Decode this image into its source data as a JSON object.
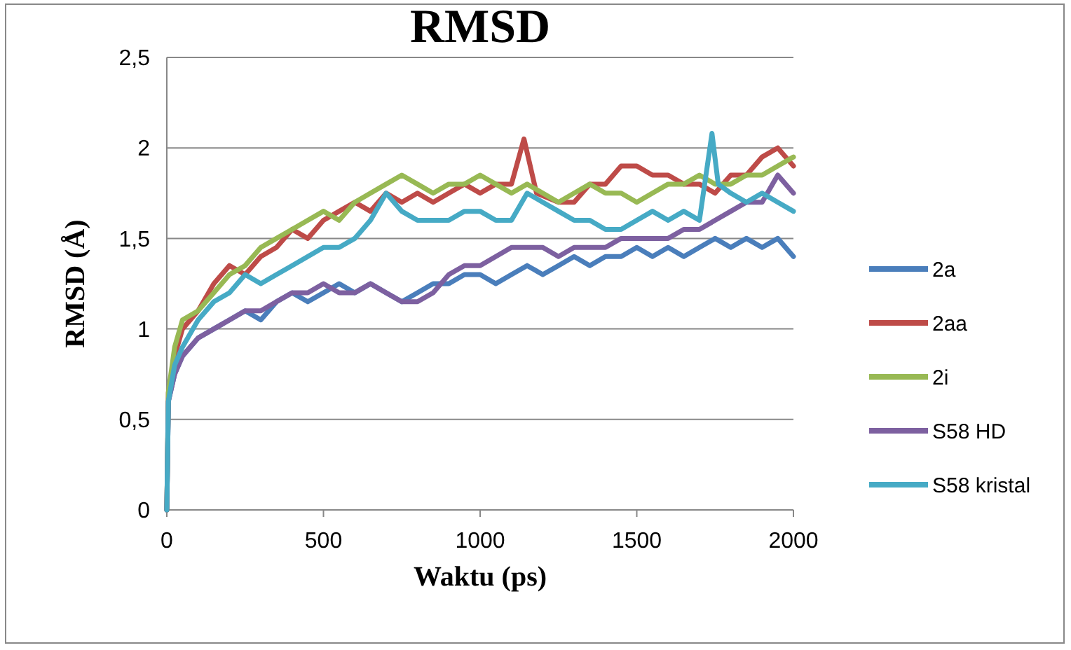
{
  "chart_data": {
    "type": "line",
    "title": "RMSD",
    "xlabel": "Waktu (ps)",
    "ylabel": "RMSD (Å)",
    "xlim": [
      0,
      2000
    ],
    "ylim": [
      0,
      2.5
    ],
    "xticks": [
      0,
      500,
      1000,
      1500,
      2000
    ],
    "yticks": [
      0,
      {
        "value": 0.5,
        "label": "0,5"
      },
      1,
      {
        "value": 1.5,
        "label": "1,5"
      },
      2,
      {
        "value": 2.5,
        "label": "2,5"
      }
    ],
    "grid": "y",
    "legend": "right",
    "marker": "none",
    "series": [
      {
        "name": "2a",
        "color": "#4a7ebb",
        "x": [
          0,
          5,
          25,
          50,
          100,
          150,
          200,
          250,
          300,
          350,
          400,
          450,
          500,
          550,
          600,
          650,
          700,
          750,
          800,
          850,
          900,
          950,
          1000,
          1050,
          1100,
          1150,
          1200,
          1250,
          1300,
          1350,
          1400,
          1450,
          1500,
          1550,
          1600,
          1650,
          1700,
          1750,
          1800,
          1850,
          1900,
          1950,
          2000
        ],
        "values": [
          0,
          0.6,
          0.75,
          0.85,
          0.95,
          1.0,
          1.05,
          1.1,
          1.05,
          1.15,
          1.2,
          1.15,
          1.2,
          1.25,
          1.2,
          1.25,
          1.2,
          1.15,
          1.2,
          1.25,
          1.25,
          1.3,
          1.3,
          1.25,
          1.3,
          1.35,
          1.3,
          1.35,
          1.4,
          1.35,
          1.4,
          1.4,
          1.45,
          1.4,
          1.45,
          1.4,
          1.45,
          1.5,
          1.45,
          1.5,
          1.45,
          1.5,
          1.4
        ]
      },
      {
        "name": "2aa",
        "color": "#be4b48",
        "x": [
          0,
          5,
          25,
          50,
          100,
          150,
          200,
          250,
          300,
          350,
          400,
          450,
          500,
          550,
          600,
          650,
          700,
          750,
          800,
          850,
          900,
          950,
          1000,
          1050,
          1100,
          1140,
          1180,
          1250,
          1300,
          1350,
          1400,
          1450,
          1500,
          1550,
          1600,
          1650,
          1700,
          1750,
          1800,
          1850,
          1900,
          1950,
          2000
        ],
        "values": [
          0,
          0.65,
          0.85,
          1.0,
          1.1,
          1.25,
          1.35,
          1.3,
          1.4,
          1.45,
          1.55,
          1.5,
          1.6,
          1.65,
          1.7,
          1.65,
          1.75,
          1.7,
          1.75,
          1.7,
          1.75,
          1.8,
          1.75,
          1.8,
          1.8,
          2.05,
          1.75,
          1.7,
          1.7,
          1.8,
          1.8,
          1.9,
          1.9,
          1.85,
          1.85,
          1.8,
          1.8,
          1.75,
          1.85,
          1.85,
          1.95,
          2.0,
          1.9
        ]
      },
      {
        "name": "2i",
        "color": "#98b954",
        "x": [
          0,
          5,
          25,
          50,
          100,
          150,
          200,
          250,
          300,
          350,
          400,
          450,
          500,
          550,
          600,
          650,
          700,
          750,
          800,
          850,
          900,
          950,
          1000,
          1050,
          1100,
          1150,
          1200,
          1250,
          1300,
          1350,
          1400,
          1450,
          1500,
          1550,
          1600,
          1650,
          1700,
          1750,
          1800,
          1850,
          1900,
          1950,
          2000
        ],
        "values": [
          0,
          0.65,
          0.9,
          1.05,
          1.1,
          1.2,
          1.3,
          1.35,
          1.45,
          1.5,
          1.55,
          1.6,
          1.65,
          1.6,
          1.7,
          1.75,
          1.8,
          1.85,
          1.8,
          1.75,
          1.8,
          1.8,
          1.85,
          1.8,
          1.75,
          1.8,
          1.75,
          1.7,
          1.75,
          1.8,
          1.75,
          1.75,
          1.7,
          1.75,
          1.8,
          1.8,
          1.85,
          1.8,
          1.8,
          1.85,
          1.85,
          1.9,
          1.95
        ]
      },
      {
        "name": "S58 HD",
        "color": "#7d60a0",
        "x": [
          0,
          5,
          25,
          50,
          100,
          150,
          200,
          250,
          300,
          350,
          400,
          450,
          500,
          550,
          600,
          650,
          700,
          750,
          800,
          850,
          900,
          950,
          1000,
          1050,
          1100,
          1150,
          1200,
          1250,
          1300,
          1350,
          1400,
          1450,
          1500,
          1550,
          1600,
          1650,
          1700,
          1750,
          1800,
          1850,
          1900,
          1950,
          2000
        ],
        "values": [
          0,
          0.6,
          0.75,
          0.85,
          0.95,
          1.0,
          1.05,
          1.1,
          1.1,
          1.15,
          1.2,
          1.2,
          1.25,
          1.2,
          1.2,
          1.25,
          1.2,
          1.15,
          1.15,
          1.2,
          1.3,
          1.35,
          1.35,
          1.4,
          1.45,
          1.45,
          1.45,
          1.4,
          1.45,
          1.45,
          1.45,
          1.5,
          1.5,
          1.5,
          1.5,
          1.55,
          1.55,
          1.6,
          1.65,
          1.7,
          1.7,
          1.85,
          1.75
        ]
      },
      {
        "name": "S58 kristal",
        "color": "#46aac5",
        "x": [
          0,
          5,
          25,
          50,
          100,
          150,
          200,
          250,
          300,
          350,
          400,
          450,
          500,
          550,
          600,
          650,
          700,
          750,
          800,
          850,
          900,
          950,
          1000,
          1050,
          1100,
          1150,
          1200,
          1250,
          1300,
          1350,
          1400,
          1450,
          1500,
          1550,
          1600,
          1650,
          1700,
          1740,
          1760,
          1800,
          1850,
          1900,
          1950,
          2000
        ],
        "values": [
          0,
          0.6,
          0.8,
          0.9,
          1.05,
          1.15,
          1.2,
          1.3,
          1.25,
          1.3,
          1.35,
          1.4,
          1.45,
          1.45,
          1.5,
          1.6,
          1.75,
          1.65,
          1.6,
          1.6,
          1.6,
          1.65,
          1.65,
          1.6,
          1.6,
          1.75,
          1.7,
          1.65,
          1.6,
          1.6,
          1.55,
          1.55,
          1.6,
          1.65,
          1.6,
          1.65,
          1.6,
          2.08,
          1.8,
          1.75,
          1.7,
          1.75,
          1.7,
          1.65
        ]
      }
    ]
  }
}
